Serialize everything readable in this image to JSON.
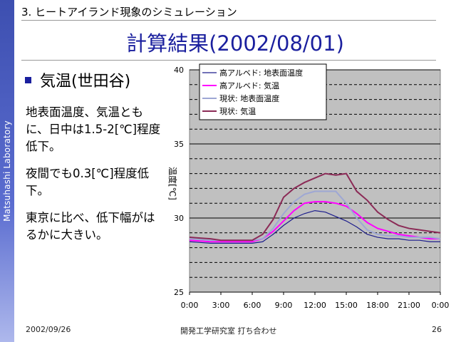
{
  "slide": {
    "sidebar_label": "Matsuhashi Laboratory",
    "section_title": "3. ヒートアイランド現象のシミュレーション",
    "title": "計算結果(2002/08/01)",
    "bullet": "気温(世田谷)",
    "paragraphs": [
      "地表面温度、気温ともに、日中は1.5-2[℃]程度低下。",
      "夜間でも0.3[℃]程度低下。",
      "東京に比べ、低下幅がはるかに大きい。"
    ],
    "footer": {
      "date": "2002/09/26",
      "center": "開発工学研究室 打ち合わせ",
      "page": "26"
    }
  },
  "chart_data": {
    "type": "line",
    "ylabel": "温度[℃]",
    "xlabel": "",
    "ylim": [
      25,
      40
    ],
    "y_ticks": [
      "25",
      "30",
      "35",
      "40"
    ],
    "x_ticks": [
      "0:00",
      "3:00",
      "6:00",
      "9:00",
      "12:00",
      "15:00",
      "18:00",
      "21:00",
      "0:00"
    ],
    "x": [
      0,
      1,
      2,
      3,
      4,
      5,
      6,
      7,
      8,
      9,
      10,
      11,
      12,
      13,
      14,
      15,
      16,
      17,
      18,
      19,
      20,
      21,
      22,
      23,
      24
    ],
    "grid": true,
    "legend_position": "top-left",
    "plot_background": "#c0c0c0",
    "series": [
      {
        "name": "高アルベド: 地表面温度",
        "color": "#1c1c8c",
        "dash": false,
        "values": [
          28.4,
          28.35,
          28.3,
          28.3,
          28.3,
          28.3,
          28.3,
          28.4,
          28.9,
          29.5,
          30.0,
          30.3,
          30.5,
          30.4,
          30.1,
          29.8,
          29.4,
          28.9,
          28.7,
          28.6,
          28.6,
          28.5,
          28.5,
          28.4,
          28.4
        ]
      },
      {
        "name": "高アルベド: 気温",
        "color": "#ff00ff",
        "dash": false,
        "values": [
          28.5,
          28.45,
          28.4,
          28.4,
          28.4,
          28.4,
          28.4,
          28.6,
          29.1,
          29.8,
          30.5,
          31.0,
          31.1,
          31.1,
          31.0,
          30.8,
          30.3,
          29.7,
          29.3,
          29.1,
          28.9,
          28.8,
          28.7,
          28.6,
          28.6
        ]
      },
      {
        "name": "現状: 地表面温度",
        "color": "#9ea7d4",
        "dash": false,
        "values": [
          28.6,
          28.55,
          28.5,
          28.5,
          28.5,
          28.5,
          28.5,
          28.6,
          29.3,
          30.3,
          31.1,
          31.6,
          31.8,
          31.8,
          31.8,
          31.0,
          30.0,
          29.2,
          28.9,
          28.8,
          28.8,
          28.7,
          28.7,
          28.7,
          28.6
        ]
      },
      {
        "name": "現状: 気温",
        "color": "#8b2a56",
        "dash": false,
        "values": [
          28.7,
          28.65,
          28.6,
          28.5,
          28.5,
          28.5,
          28.5,
          28.9,
          29.9,
          31.4,
          32.0,
          32.4,
          32.7,
          33.0,
          32.9,
          33.0,
          31.8,
          31.2,
          30.4,
          29.9,
          29.5,
          29.3,
          29.2,
          29.1,
          29.0
        ]
      }
    ]
  }
}
